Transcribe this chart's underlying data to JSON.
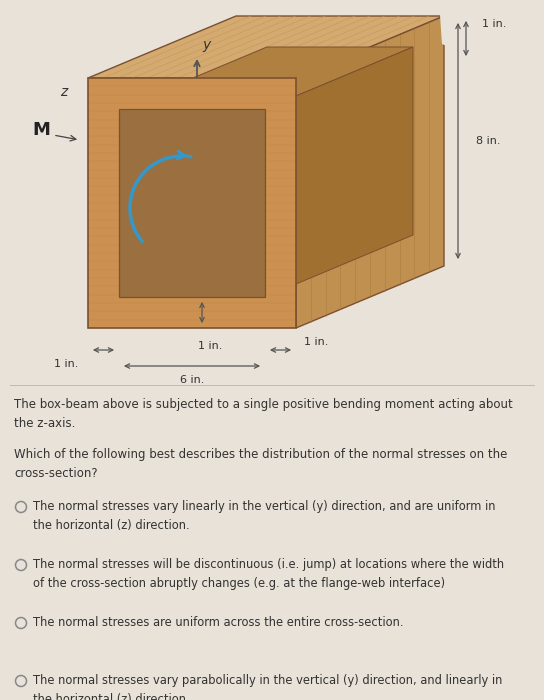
{
  "bg_color": "#e8e2d8",
  "paragraph1": "The box-beam above is subjected to a single positive bending moment acting about\nthe z-axis.",
  "paragraph2": "Which of the following best describes the distribution of the normal stresses on the\ncross-section?",
  "options": [
    "The normal stresses vary linearly in the vertical (y) direction, and are uniform in\nthe horizontal (z) direction.",
    "The normal stresses will be discontinuous (i.e. jump) at locations where the width\nof the cross-section abruptly changes (e.g. at the flange-web interface)",
    "The normal stresses are uniform across the entire cross-section.",
    "The normal stresses vary parabolically in the vertical (y) direction, and linearly in\nthe horizontal (z) direction."
  ],
  "text_color": "#333333",
  "edge_color": "#7a5030",
  "top_face_color": "#d4aa70",
  "top_grain_color": "#c49858",
  "right_face_color": "#c09050",
  "right_grain_color": "#a87838",
  "front_wall_color": "#cc9050",
  "front_hollow_color": "#9a7040",
  "inner_back_color": "#b08040",
  "inner_right_color": "#a07030"
}
